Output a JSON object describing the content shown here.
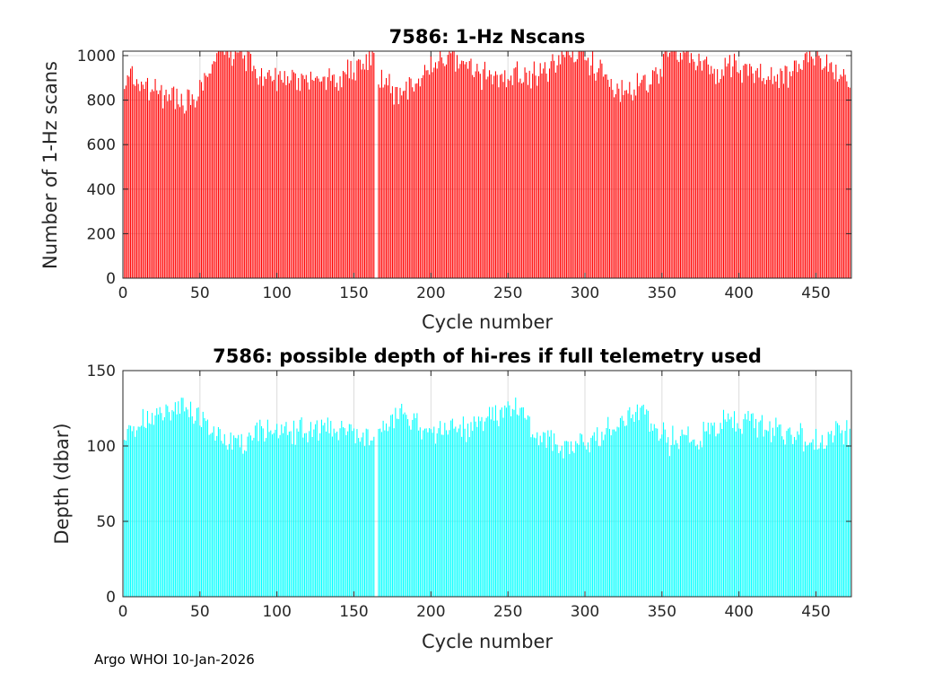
{
  "footer": "Argo WHOI 10-Jan-2026",
  "colors": {
    "top_bars": "#ff0000",
    "bottom_bars": "#00ffff",
    "grid": "#dcdcdc",
    "axes": "#262626"
  },
  "chart_data": [
    {
      "type": "bar",
      "title": "7586: 1-Hz Nscans",
      "xlabel": "Cycle number",
      "ylabel": "Number of 1-Hz scans",
      "xlim": [
        0,
        473
      ],
      "ylim": [
        0,
        1020
      ],
      "xticks": [
        0,
        50,
        100,
        150,
        200,
        250,
        300,
        350,
        400,
        450
      ],
      "yticks": [
        0,
        200,
        400,
        600,
        800,
        1000
      ],
      "grid": true,
      "bar_color": "#ff0000",
      "missing_cycles": [
        164,
        165
      ],
      "x_range": [
        1,
        472
      ],
      "segments": [
        [
          1,
          880
        ],
        [
          3,
          950
        ],
        [
          8,
          900
        ],
        [
          12,
          860
        ],
        [
          18,
          840
        ],
        [
          25,
          820
        ],
        [
          32,
          810
        ],
        [
          40,
          805
        ],
        [
          48,
          830
        ],
        [
          55,
          890
        ],
        [
          60,
          980
        ],
        [
          65,
          1020
        ],
        [
          72,
          1005
        ],
        [
          80,
          990
        ],
        [
          88,
          920
        ],
        [
          95,
          900
        ],
        [
          105,
          895
        ],
        [
          115,
          890
        ],
        [
          125,
          880
        ],
        [
          135,
          900
        ],
        [
          145,
          930
        ],
        [
          155,
          960
        ],
        [
          163,
          990
        ],
        [
          166,
          870
        ],
        [
          172,
          900
        ],
        [
          178,
          830
        ],
        [
          185,
          850
        ],
        [
          192,
          900
        ],
        [
          200,
          930
        ],
        [
          210,
          990
        ],
        [
          218,
          970
        ],
        [
          225,
          930
        ],
        [
          235,
          910
        ],
        [
          245,
          900
        ],
        [
          255,
          920
        ],
        [
          262,
          900
        ],
        [
          270,
          930
        ],
        [
          278,
          960
        ],
        [
          285,
          1000
        ],
        [
          292,
          1010
        ],
        [
          300,
          990
        ],
        [
          310,
          940
        ],
        [
          320,
          870
        ],
        [
          328,
          840
        ],
        [
          336,
          860
        ],
        [
          345,
          900
        ],
        [
          352,
          980
        ],
        [
          360,
          1010
        ],
        [
          368,
          990
        ],
        [
          376,
          950
        ],
        [
          385,
          930
        ],
        [
          395,
          960
        ],
        [
          405,
          940
        ],
        [
          415,
          920
        ],
        [
          425,
          900
        ],
        [
          435,
          940
        ],
        [
          442,
          960
        ],
        [
          450,
          1000
        ],
        [
          458,
          950
        ],
        [
          466,
          920
        ],
        [
          472,
          900
        ]
      ],
      "jitter": 75
    },
    {
      "type": "bar",
      "title": "7586: possible depth of hi-res if full telemetry used",
      "xlabel": "Cycle number",
      "ylabel": "Depth (dbar)",
      "xlim": [
        0,
        473
      ],
      "ylim": [
        0,
        150
      ],
      "xticks": [
        0,
        50,
        100,
        150,
        200,
        250,
        300,
        350,
        400,
        450
      ],
      "yticks": [
        0,
        50,
        100,
        150
      ],
      "grid": true,
      "bar_color": "#00ffff",
      "missing_cycles": [
        164,
        165
      ],
      "x_range": [
        1,
        472
      ],
      "segments": [
        [
          1,
          100
        ],
        [
          3,
          112
        ],
        [
          8,
          110
        ],
        [
          15,
          116
        ],
        [
          25,
          121
        ],
        [
          35,
          124
        ],
        [
          45,
          122
        ],
        [
          52,
          118
        ],
        [
          58,
          110
        ],
        [
          65,
          103
        ],
        [
          72,
          102
        ],
        [
          80,
          101
        ],
        [
          88,
          108
        ],
        [
          95,
          111
        ],
        [
          105,
          110
        ],
        [
          115,
          111
        ],
        [
          125,
          111
        ],
        [
          135,
          112
        ],
        [
          145,
          108
        ],
        [
          155,
          106
        ],
        [
          163,
          104
        ],
        [
          166,
          108
        ],
        [
          172,
          113
        ],
        [
          178,
          120
        ],
        [
          185,
          123
        ],
        [
          192,
          114
        ],
        [
          200,
          110
        ],
        [
          210,
          112
        ],
        [
          220,
          113
        ],
        [
          230,
          115
        ],
        [
          240,
          118
        ],
        [
          248,
          124
        ],
        [
          255,
          127
        ],
        [
          262,
          117
        ],
        [
          270,
          108
        ],
        [
          278,
          103
        ],
        [
          285,
          100
        ],
        [
          292,
          100
        ],
        [
          300,
          101
        ],
        [
          308,
          103
        ],
        [
          316,
          110
        ],
        [
          325,
          117
        ],
        [
          333,
          122
        ],
        [
          340,
          120
        ],
        [
          348,
          108
        ],
        [
          356,
          103
        ],
        [
          365,
          104
        ],
        [
          375,
          106
        ],
        [
          385,
          112
        ],
        [
          395,
          117
        ],
        [
          405,
          116
        ],
        [
          415,
          113
        ],
        [
          425,
          110
        ],
        [
          435,
          108
        ],
        [
          445,
          104
        ],
        [
          452,
          101
        ],
        [
          460,
          108
        ],
        [
          468,
          110
        ],
        [
          472,
          112
        ]
      ],
      "jitter": 11
    }
  ]
}
